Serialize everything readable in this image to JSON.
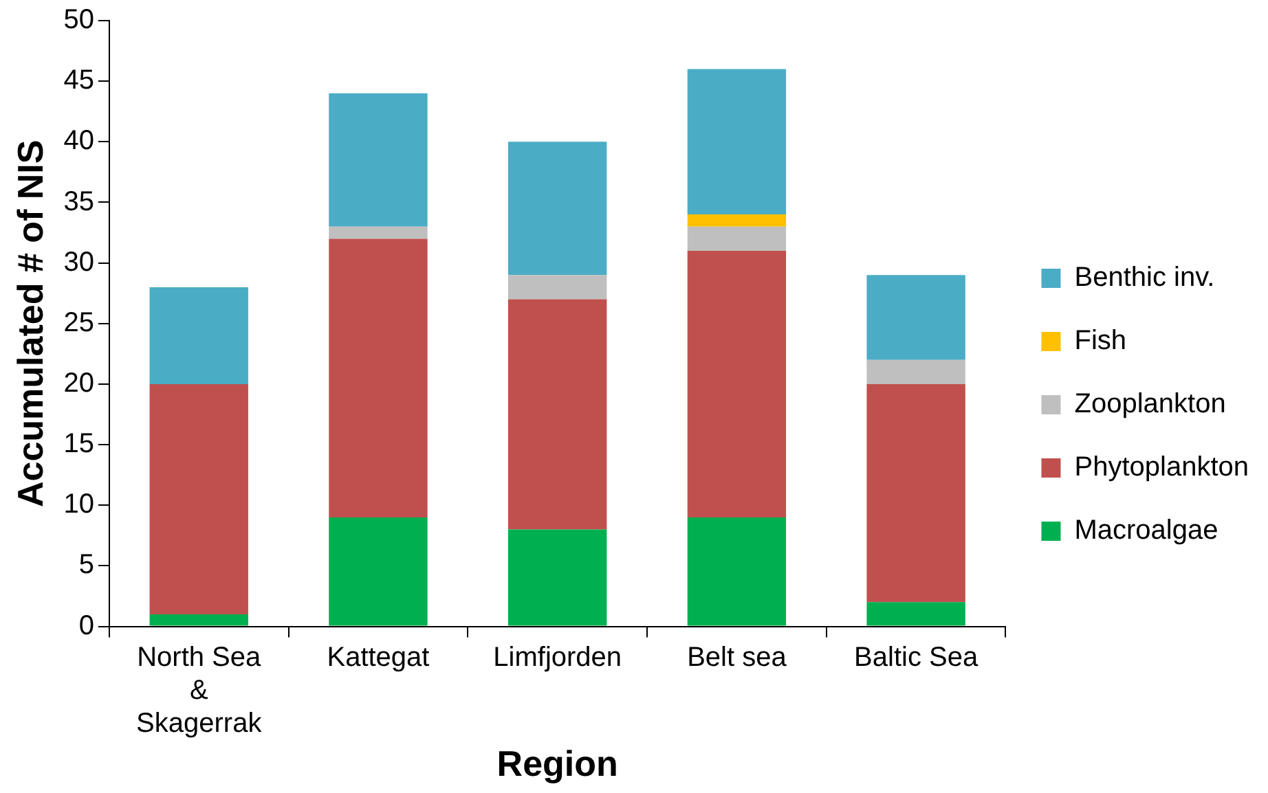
{
  "chart_data": {
    "type": "bar",
    "stacked": true,
    "xlabel": "Region",
    "ylabel": "Accumulated # of NIS",
    "categories": [
      "North Sea & Skagerrak",
      "Kattegat",
      "Limfjorden",
      "Belt sea",
      "Baltic Sea"
    ],
    "series": [
      {
        "name": "Macroalgae",
        "color": "#00b050",
        "values": [
          1,
          9,
          8,
          9,
          2
        ]
      },
      {
        "name": "Phytoplankton",
        "color": "#c0504d",
        "values": [
          19,
          23,
          19,
          22,
          18
        ]
      },
      {
        "name": "Zooplankton",
        "color": "#bfbfbf",
        "values": [
          0,
          1,
          2,
          2,
          2
        ]
      },
      {
        "name": "Fish",
        "color": "#ffc000",
        "values": [
          0,
          0,
          0,
          1,
          0
        ]
      },
      {
        "name": "Benthic inv.",
        "color": "#4bacc6",
        "values": [
          8,
          11,
          11,
          12,
          7
        ]
      }
    ],
    "ylim": [
      0,
      50
    ],
    "yticks": [
      0,
      5,
      10,
      15,
      20,
      25,
      30,
      35,
      40,
      45,
      50
    ],
    "grid": false,
    "legend": "right"
  }
}
